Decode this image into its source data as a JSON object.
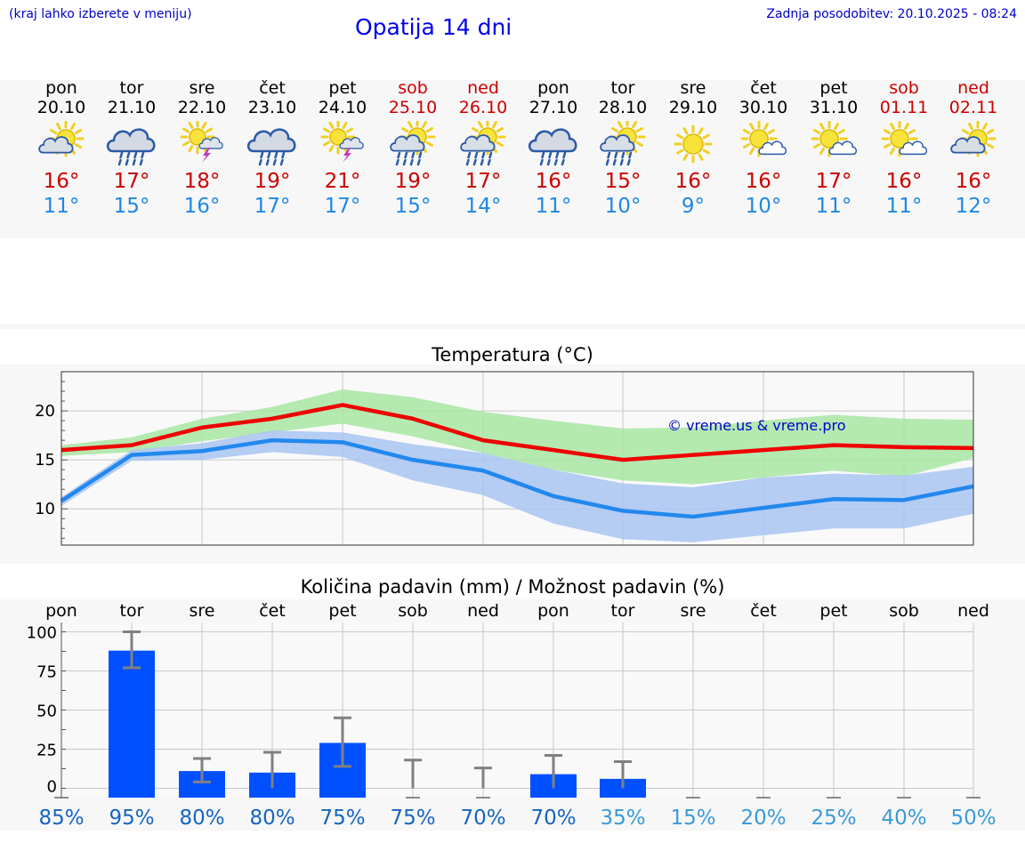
{
  "header": {
    "note": "(kraj lahko izberete v meniju)",
    "title": "Opatija 14 dni",
    "updated": "Zadnja posodobitev: 20.10.2025 - 08:24"
  },
  "days": [
    {
      "name": "pon",
      "date": "20.10",
      "weekend": false,
      "icon": "partly-cloudy-icon",
      "max": "16°",
      "min": "11°"
    },
    {
      "name": "tor",
      "date": "21.10",
      "weekend": false,
      "icon": "cloud-rain-icon",
      "max": "17°",
      "min": "15°"
    },
    {
      "name": "sre",
      "date": "22.10",
      "weekend": false,
      "icon": "sun-thunder-icon",
      "max": "18°",
      "min": "16°"
    },
    {
      "name": "čet",
      "date": "23.10",
      "weekend": false,
      "icon": "cloud-rain-icon",
      "max": "19°",
      "min": "17°"
    },
    {
      "name": "pet",
      "date": "24.10",
      "weekend": false,
      "icon": "sun-thunder-icon",
      "max": "21°",
      "min": "17°"
    },
    {
      "name": "sob",
      "date": "25.10",
      "weekend": true,
      "icon": "sun-cloud-rain-icon",
      "max": "19°",
      "min": "15°"
    },
    {
      "name": "ned",
      "date": "26.10",
      "weekend": true,
      "icon": "sun-cloud-rain-icon",
      "max": "17°",
      "min": "14°"
    },
    {
      "name": "pon",
      "date": "27.10",
      "weekend": false,
      "icon": "cloud-rain-icon",
      "max": "16°",
      "min": "11°"
    },
    {
      "name": "tor",
      "date": "28.10",
      "weekend": false,
      "icon": "sun-cloud-rain-icon",
      "max": "15°",
      "min": "10°"
    },
    {
      "name": "sre",
      "date": "29.10",
      "weekend": false,
      "icon": "sun-icon",
      "max": "16°",
      "min": "9°"
    },
    {
      "name": "čet",
      "date": "30.10",
      "weekend": false,
      "icon": "sun-small-cloud-icon",
      "max": "16°",
      "min": "10°"
    },
    {
      "name": "pet",
      "date": "31.10",
      "weekend": false,
      "icon": "sun-small-cloud-icon",
      "max": "17°",
      "min": "11°"
    },
    {
      "name": "sob",
      "date": "01.11",
      "weekend": true,
      "icon": "sun-small-cloud-icon",
      "max": "16°",
      "min": "11°"
    },
    {
      "name": "ned",
      "date": "02.11",
      "weekend": true,
      "icon": "partly-cloudy-icon",
      "max": "16°",
      "min": "12°"
    }
  ],
  "colors": {
    "max_line": "#ee0000",
    "min_line": "#2288ee",
    "max_band": "#a8e6a3",
    "min_band": "#a9c4f2",
    "bar": "#0050ff",
    "error_bar": "#808080",
    "pct_dark": "#1565c0",
    "pct_light": "#3a9ad9"
  },
  "chart_data": [
    {
      "type": "line",
      "title": "Temperatura (°C)",
      "watermark": "© vreme.us & vreme.pro",
      "x": [
        "20.10",
        "21.10",
        "22.10",
        "23.10",
        "24.10",
        "25.10",
        "26.10",
        "27.10",
        "28.10",
        "29.10",
        "30.10",
        "31.10",
        "01.11",
        "02.11"
      ],
      "ylim": [
        6.3,
        24
      ],
      "yticks": [
        10,
        15,
        20
      ],
      "grid": true,
      "series": [
        {
          "role": "max",
          "values": [
            16.0,
            16.5,
            18.3,
            19.2,
            20.6,
            19.2,
            17.0,
            16.0,
            15.0,
            15.5,
            16.0,
            16.5,
            16.3,
            16.2
          ],
          "band_low": [
            15.4,
            15.8,
            16.9,
            17.8,
            18.7,
            17.4,
            15.7,
            14.0,
            12.9,
            12.5,
            13.2,
            13.9,
            13.3,
            15.2
          ],
          "band_high": [
            16.5,
            17.3,
            19.2,
            20.4,
            22.2,
            21.4,
            19.9,
            19.0,
            18.2,
            18.3,
            19.0,
            19.6,
            19.2,
            19.1
          ]
        },
        {
          "role": "min",
          "values": [
            10.8,
            15.5,
            15.9,
            17.0,
            16.8,
            15.0,
            13.9,
            11.3,
            9.8,
            9.2,
            10.1,
            11.0,
            10.9,
            12.3
          ],
          "band_low": [
            10.3,
            14.9,
            15.0,
            15.8,
            15.3,
            12.9,
            11.4,
            8.5,
            6.9,
            6.6,
            7.3,
            8.0,
            8.0,
            9.5
          ],
          "band_high": [
            11.2,
            16.0,
            16.7,
            18.0,
            17.8,
            16.6,
            15.7,
            14.0,
            12.6,
            12.2,
            13.2,
            13.6,
            13.4,
            14.3
          ]
        }
      ]
    },
    {
      "type": "bar",
      "title": "Količina padavin (mm) / Možnost padavin (%)",
      "categories": [
        "pon",
        "tor",
        "sre",
        "čet",
        "pet",
        "sob",
        "ned",
        "pon",
        "tor",
        "sre",
        "čet",
        "pet",
        "sob",
        "ned"
      ],
      "values": [
        0,
        88,
        11,
        10,
        29,
        0,
        0,
        9,
        6,
        0,
        0,
        0,
        0,
        0
      ],
      "error_low": [
        0,
        77,
        4,
        0,
        14,
        0,
        0,
        0,
        0,
        0,
        0,
        0,
        0,
        0
      ],
      "error_high": [
        0,
        100,
        19,
        23,
        45,
        18,
        13,
        21,
        17,
        0,
        0,
        0,
        0,
        0
      ],
      "chance": [
        "85%",
        "95%",
        "80%",
        "80%",
        "75%",
        "75%",
        "70%",
        "70%",
        "35%",
        "15%",
        "20%",
        "25%",
        "40%",
        "50%"
      ],
      "ylim": [
        -6,
        106
      ],
      "yticks": [
        "0",
        "25",
        "50",
        "75",
        "100"
      ],
      "grid": true
    }
  ]
}
